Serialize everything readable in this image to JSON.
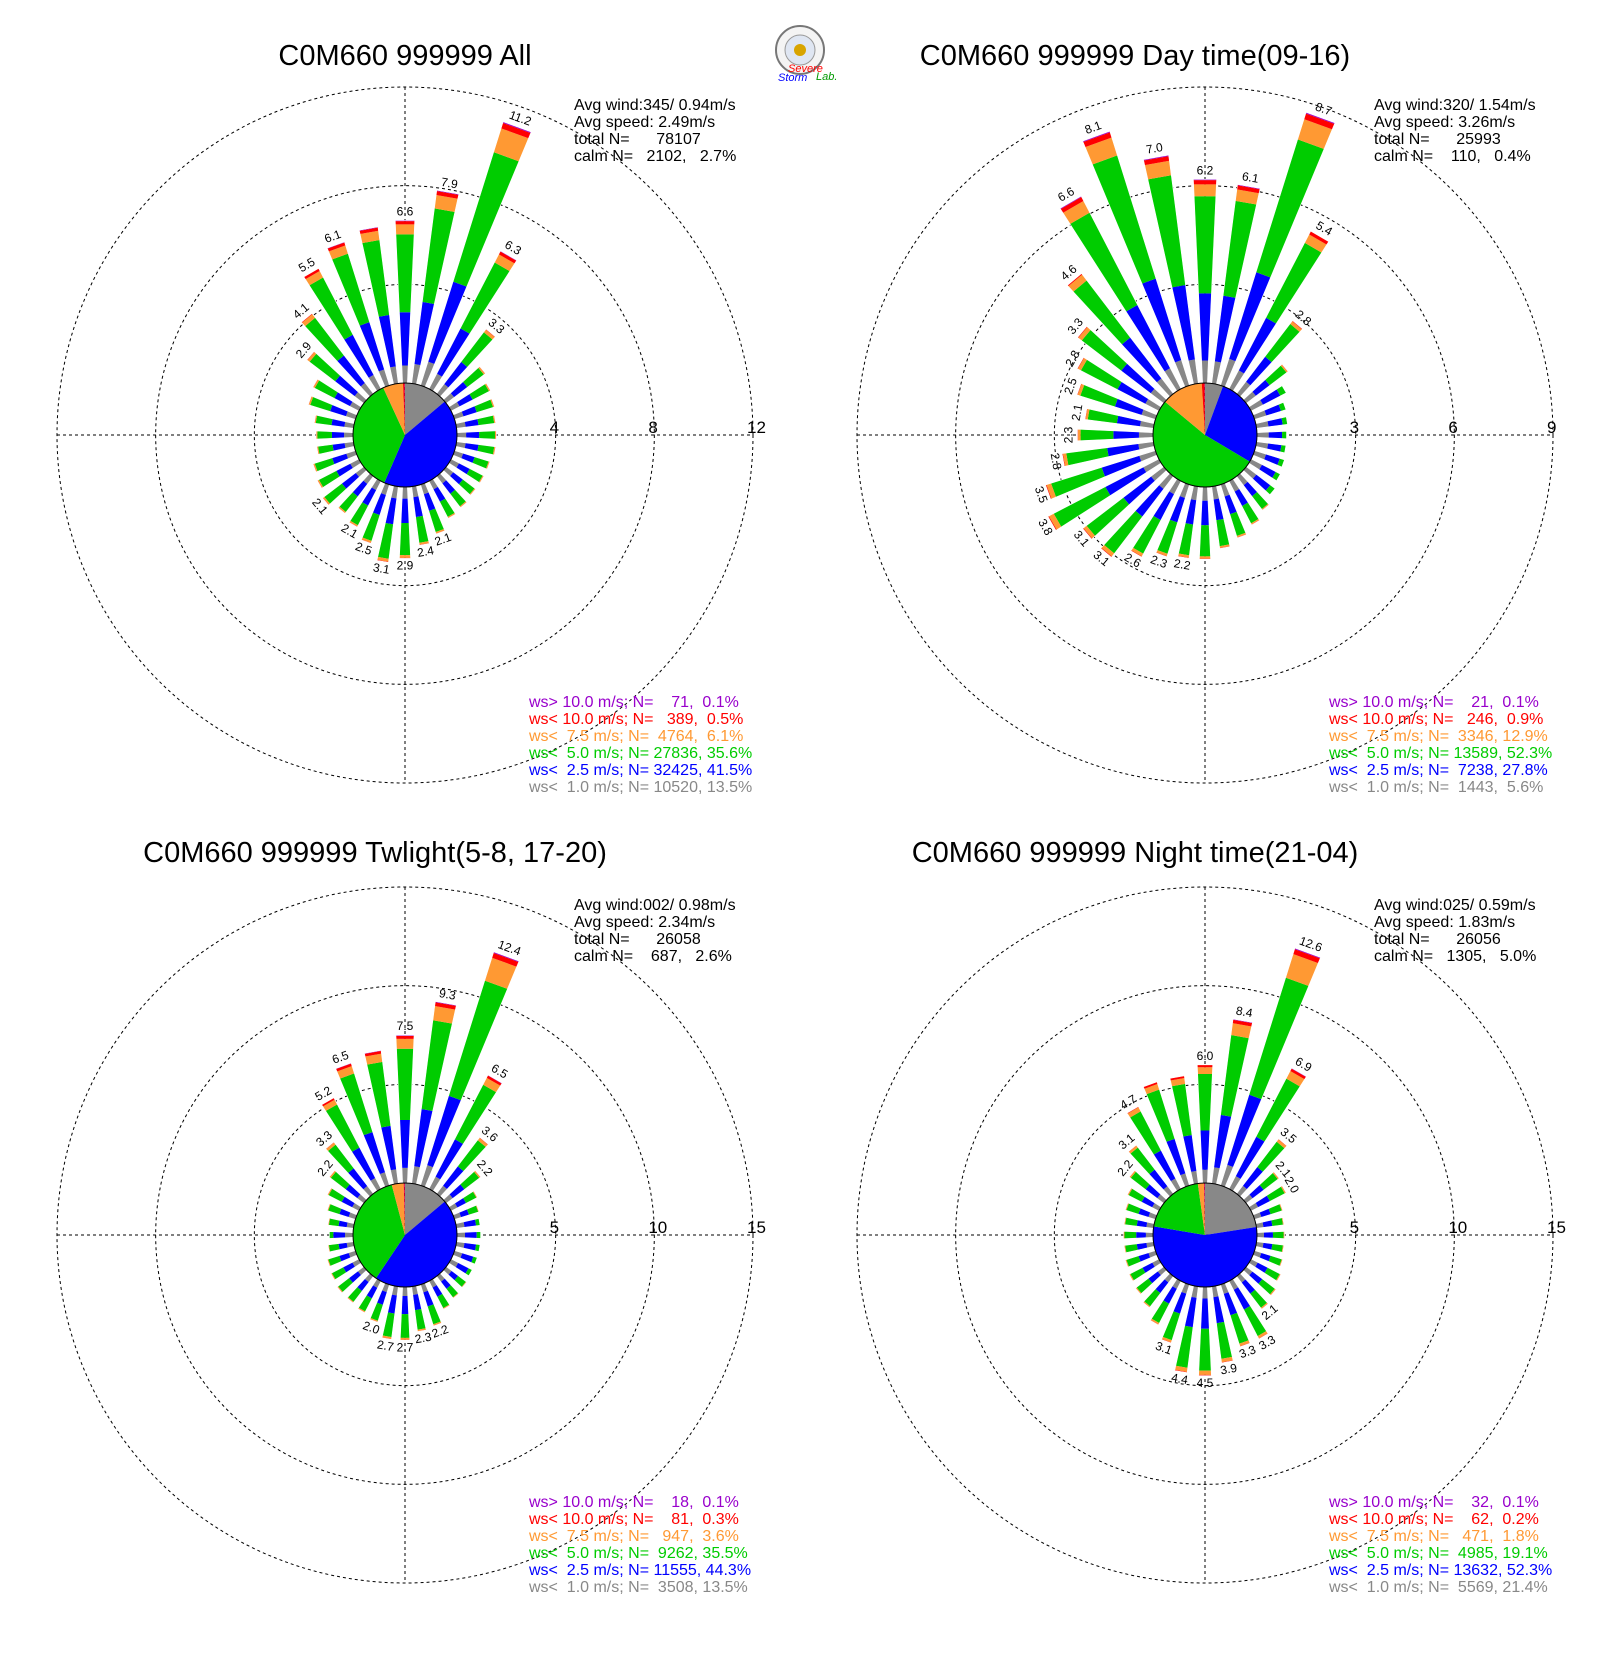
{
  "colors": {
    "gt10": "#9900cc",
    "lt10": "#ff0000",
    "lt7_5": "#ff9933",
    "lt5": "#00cc00",
    "lt2_5": "#0000ff",
    "lt1": "#888888"
  },
  "logo": {
    "text1": "Severe",
    "text2": "Storm",
    "text3": "Lab."
  },
  "chart_data": [
    {
      "type": "wind-rose",
      "title": "C0M660 999999 All",
      "rings": [
        "4",
        "8",
        "12"
      ],
      "ring_values": [
        4,
        8,
        12
      ],
      "info": [
        "Avg wind:345/ 0.94m/s",
        "Avg speed: 2.49m/s",
        "total N=      78107",
        "calm N=   2102,   2.7%"
      ],
      "legend": [
        "ws> 10.0 m/s; N=    71,  0.1%",
        "ws< 10.0 m/s; N=   389,  0.5%",
        "ws<  7.5 m/s; N=  4764,  6.1%",
        "ws<  5.0 m/s; N= 27836, 35.6%",
        "ws<  2.5 m/s; N= 32425, 41.5%",
        "ws<  1.0 m/s; N= 10520, 13.5%"
      ],
      "pie": [
        13.5,
        41.5,
        35.6,
        6.1,
        0.5,
        0.1
      ],
      "sectors": [
        {
          "dir": 0,
          "total": 6.6,
          "label": "6.6"
        },
        {
          "dir": 10,
          "total": 7.9,
          "label": "7.9"
        },
        {
          "dir": 20,
          "total": 11.2,
          "label": "11.2"
        },
        {
          "dir": 30,
          "total": 6.3,
          "label": "6.3"
        },
        {
          "dir": 40,
          "total": 3.3,
          "label": "3.3"
        },
        {
          "dir": 50,
          "total": 2.0
        },
        {
          "dir": 60,
          "total": 1.8
        },
        {
          "dir": 70,
          "total": 1.7
        },
        {
          "dir": 80,
          "total": 1.6
        },
        {
          "dir": 90,
          "total": 1.6
        },
        {
          "dir": 100,
          "total": 1.6
        },
        {
          "dir": 110,
          "total": 1.5
        },
        {
          "dir": 120,
          "total": 1.5
        },
        {
          "dir": 130,
          "total": 1.5
        },
        {
          "dir": 140,
          "total": 1.6
        },
        {
          "dir": 150,
          "total": 1.7
        },
        {
          "dir": 160,
          "total": 2.1,
          "label": "2.1"
        },
        {
          "dir": 170,
          "total": 2.4,
          "label": "2.4"
        },
        {
          "dir": 180,
          "total": 2.9,
          "label": "2.9"
        },
        {
          "dir": 190,
          "total": 3.1,
          "label": "3.1"
        },
        {
          "dir": 200,
          "total": 2.5,
          "label": "2.5"
        },
        {
          "dir": 210,
          "total": 2.1,
          "label": "2.1"
        },
        {
          "dir": 220,
          "total": 1.9
        },
        {
          "dir": 230,
          "total": 2.1,
          "label": "2.1"
        },
        {
          "dir": 240,
          "total": 1.9
        },
        {
          "dir": 250,
          "total": 1.8
        },
        {
          "dir": 260,
          "total": 1.5
        },
        {
          "dir": 270,
          "total": 1.5
        },
        {
          "dir": 280,
          "total": 1.6
        },
        {
          "dir": 290,
          "total": 2.0
        },
        {
          "dir": 300,
          "total": 2.1
        },
        {
          "dir": 310,
          "total": 2.9,
          "label": "2.9"
        },
        {
          "dir": 320,
          "total": 4.1,
          "label": "4.1"
        },
        {
          "dir": 330,
          "total": 5.5,
          "label": "5.5"
        },
        {
          "dir": 340,
          "total": 6.1,
          "label": "6.1"
        },
        {
          "dir": 350,
          "total": 6.4
        }
      ]
    },
    {
      "type": "wind-rose",
      "title": "C0M660 999999 Day time(09-16)",
      "rings": [
        "3",
        "6",
        "9"
      ],
      "ring_values": [
        3,
        6,
        9
      ],
      "info": [
        "Avg wind:320/ 1.54m/s",
        "Avg speed: 3.26m/s",
        "total N=      25993",
        "calm N=    110,   0.4%"
      ],
      "legend": [
        "ws> 10.0 m/s; N=    21,  0.1%",
        "ws< 10.0 m/s; N=   246,  0.9%",
        "ws<  7.5 m/s; N=  3346, 12.9%",
        "ws<  5.0 m/s; N= 13589, 52.3%",
        "ws<  2.5 m/s; N=  7238, 27.8%",
        "ws<  1.0 m/s; N=  1443,  5.6%"
      ],
      "pie": [
        5.6,
        27.8,
        52.3,
        12.9,
        0.9,
        0.1
      ],
      "sectors": [
        {
          "dir": 0,
          "total": 6.2,
          "label": "6.2"
        },
        {
          "dir": 10,
          "total": 6.1,
          "label": "6.1"
        },
        {
          "dir": 20,
          "total": 8.7,
          "label": "8.7"
        },
        {
          "dir": 30,
          "total": 5.4,
          "label": "5.4"
        },
        {
          "dir": 40,
          "total": 2.8,
          "label": "2.8"
        },
        {
          "dir": 50,
          "total": 1.6
        },
        {
          "dir": 60,
          "total": 1.2
        },
        {
          "dir": 70,
          "total": 1.0
        },
        {
          "dir": 80,
          "total": 0.95
        },
        {
          "dir": 90,
          "total": 0.9
        },
        {
          "dir": 100,
          "total": 0.9
        },
        {
          "dir": 110,
          "total": 0.95
        },
        {
          "dir": 120,
          "total": 1.0
        },
        {
          "dir": 130,
          "total": 1.1
        },
        {
          "dir": 140,
          "total": 1.3
        },
        {
          "dir": 150,
          "total": 1.5
        },
        {
          "dir": 160,
          "total": 1.7
        },
        {
          "dir": 170,
          "total": 1.9
        },
        {
          "dir": 180,
          "total": 2.2
        },
        {
          "dir": 190,
          "total": 2.2,
          "label": "2.2"
        },
        {
          "dir": 200,
          "total": 2.3,
          "label": "2.3"
        },
        {
          "dir": 210,
          "total": 2.6,
          "label": "2.6"
        },
        {
          "dir": 220,
          "total": 3.1,
          "label": "3.1"
        },
        {
          "dir": 230,
          "total": 3.1,
          "label": "3.1"
        },
        {
          "dir": 240,
          "total": 3.8,
          "label": "3.8"
        },
        {
          "dir": 250,
          "total": 3.5,
          "label": "3.5"
        },
        {
          "dir": 260,
          "total": 2.8,
          "label": "2.8"
        },
        {
          "dir": 270,
          "total": 2.3,
          "label": "2.3"
        },
        {
          "dir": 280,
          "total": 2.1,
          "label": "2.1"
        },
        {
          "dir": 290,
          "total": 2.5,
          "label": "2.5"
        },
        {
          "dir": 300,
          "total": 2.8,
          "label": "2.8"
        },
        {
          "dir": 310,
          "total": 3.3,
          "label": "3.3"
        },
        {
          "dir": 320,
          "total": 4.6,
          "label": "4.6"
        },
        {
          "dir": 330,
          "total": 6.6,
          "label": "6.6"
        },
        {
          "dir": 340,
          "total": 8.1,
          "label": "8.1"
        },
        {
          "dir": 350,
          "total": 7.0,
          "label": "7.0"
        }
      ]
    },
    {
      "type": "wind-rose",
      "title": "C0M660 999999 Twlight(5-8, 17-20)",
      "rings": [
        "5",
        "10",
        "15"
      ],
      "ring_values": [
        5,
        10,
        15
      ],
      "info": [
        "Avg wind:002/ 0.98m/s",
        "Avg speed: 2.34m/s",
        "total N=      26058",
        "calm N=    687,   2.6%"
      ],
      "legend": [
        "ws> 10.0 m/s; N=    18,  0.1%",
        "ws< 10.0 m/s; N=    81,  0.3%",
        "ws<  7.5 m/s; N=   947,  3.6%",
        "ws<  5.0 m/s; N=  9262, 35.5%",
        "ws<  2.5 m/s; N= 11555, 44.3%",
        "ws<  1.0 m/s; N=  3508, 13.5%"
      ],
      "pie": [
        13.5,
        44.3,
        35.5,
        3.6,
        0.3,
        0.1
      ],
      "sectors": [
        {
          "dir": 0,
          "total": 7.5,
          "label": "7.5"
        },
        {
          "dir": 10,
          "total": 9.3,
          "label": "9.3"
        },
        {
          "dir": 20,
          "total": 12.4,
          "label": "12.4"
        },
        {
          "dir": 30,
          "total": 6.5,
          "label": "6.5"
        },
        {
          "dir": 40,
          "total": 3.6,
          "label": "3.6"
        },
        {
          "dir": 50,
          "total": 2.2,
          "label": "2.2"
        },
        {
          "dir": 60,
          "total": 1.5
        },
        {
          "dir": 70,
          "total": 1.3
        },
        {
          "dir": 80,
          "total": 1.2
        },
        {
          "dir": 90,
          "total": 1.2
        },
        {
          "dir": 100,
          "total": 1.2
        },
        {
          "dir": 110,
          "total": 1.2
        },
        {
          "dir": 120,
          "total": 1.2
        },
        {
          "dir": 130,
          "total": 1.3
        },
        {
          "dir": 140,
          "total": 1.4
        },
        {
          "dir": 150,
          "total": 1.6
        },
        {
          "dir": 160,
          "total": 2.2,
          "label": "2.2"
        },
        {
          "dir": 170,
          "total": 2.3,
          "label": "2.3"
        },
        {
          "dir": 180,
          "total": 2.7,
          "label": "2.7"
        },
        {
          "dir": 190,
          "total": 2.7,
          "label": "2.7"
        },
        {
          "dir": 200,
          "total": 2.0,
          "label": "2.0"
        },
        {
          "dir": 210,
          "total": 1.8
        },
        {
          "dir": 220,
          "total": 1.7
        },
        {
          "dir": 230,
          "total": 1.7
        },
        {
          "dir": 240,
          "total": 1.6
        },
        {
          "dir": 250,
          "total": 1.5
        },
        {
          "dir": 260,
          "total": 1.3
        },
        {
          "dir": 270,
          "total": 1.2
        },
        {
          "dir": 280,
          "total": 1.3
        },
        {
          "dir": 290,
          "total": 1.5
        },
        {
          "dir": 300,
          "total": 1.8
        },
        {
          "dir": 310,
          "total": 2.2,
          "label": "2.2"
        },
        {
          "dir": 320,
          "total": 3.3,
          "label": "3.3"
        },
        {
          "dir": 330,
          "total": 5.2,
          "label": "5.2"
        },
        {
          "dir": 340,
          "total": 6.5,
          "label": "6.5"
        },
        {
          "dir": 350,
          "total": 6.8
        }
      ]
    },
    {
      "type": "wind-rose",
      "title": "C0M660 999999 Night time(21-04)",
      "rings": [
        "5",
        "10",
        "15"
      ],
      "ring_values": [
        5,
        10,
        15
      ],
      "info": [
        "Avg wind:025/ 0.59m/s",
        "Avg speed: 1.83m/s",
        "total N=      26056",
        "calm N=   1305,   5.0%"
      ],
      "legend": [
        "ws> 10.0 m/s; N=    32,  0.1%",
        "ws< 10.0 m/s; N=    62,  0.2%",
        "ws<  7.5 m/s; N=   471,  1.8%",
        "ws<  5.0 m/s; N=  4985, 19.1%",
        "ws<  2.5 m/s; N= 13632, 52.3%",
        "ws<  1.0 m/s; N=  5569, 21.4%"
      ],
      "pie": [
        21.4,
        52.3,
        19.1,
        1.8,
        0.2,
        0.1
      ],
      "sectors": [
        {
          "dir": 0,
          "total": 6.0,
          "label": "6.0"
        },
        {
          "dir": 10,
          "total": 8.4,
          "label": "8.4"
        },
        {
          "dir": 20,
          "total": 12.6,
          "label": "12.6"
        },
        {
          "dir": 30,
          "total": 6.9,
          "label": "6.9"
        },
        {
          "dir": 40,
          "total": 3.5,
          "label": "3.5"
        },
        {
          "dir": 50,
          "total": 2.1,
          "label": "2.1"
        },
        {
          "dir": 60,
          "total": 2.0,
          "label": "2.0"
        },
        {
          "dir": 70,
          "total": 1.5
        },
        {
          "dir": 80,
          "total": 1.4
        },
        {
          "dir": 90,
          "total": 1.4
        },
        {
          "dir": 100,
          "total": 1.4
        },
        {
          "dir": 110,
          "total": 1.5
        },
        {
          "dir": 120,
          "total": 1.7
        },
        {
          "dir": 130,
          "total": 1.9
        },
        {
          "dir": 140,
          "total": 2.1,
          "label": "2.1"
        },
        {
          "dir": 150,
          "total": 3.3,
          "label": "3.3"
        },
        {
          "dir": 160,
          "total": 3.3,
          "label": "3.3"
        },
        {
          "dir": 170,
          "total": 3.9,
          "label": "3.9"
        },
        {
          "dir": 180,
          "total": 4.5,
          "label": "4.5"
        },
        {
          "dir": 190,
          "total": 4.4,
          "label": "4.4"
        },
        {
          "dir": 200,
          "total": 3.1,
          "label": "3.1"
        },
        {
          "dir": 210,
          "total": 2.5
        },
        {
          "dir": 220,
          "total": 2.0
        },
        {
          "dir": 230,
          "total": 1.8
        },
        {
          "dir": 240,
          "total": 1.7
        },
        {
          "dir": 250,
          "total": 1.6
        },
        {
          "dir": 260,
          "total": 1.5
        },
        {
          "dir": 270,
          "total": 1.5
        },
        {
          "dir": 280,
          "total": 1.5
        },
        {
          "dir": 290,
          "total": 1.6
        },
        {
          "dir": 300,
          "total": 1.8
        },
        {
          "dir": 310,
          "total": 2.2,
          "label": "2.2"
        },
        {
          "dir": 320,
          "total": 3.1,
          "label": "3.1"
        },
        {
          "dir": 330,
          "total": 4.7,
          "label": "4.7"
        },
        {
          "dir": 340,
          "total": 5.5
        },
        {
          "dir": 350,
          "total": 5.5
        }
      ]
    }
  ]
}
